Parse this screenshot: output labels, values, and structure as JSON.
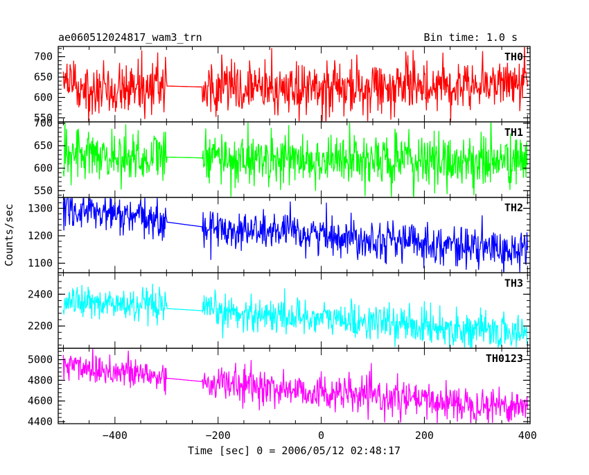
{
  "header": {
    "obs_id": "ae060512024817_wam3_trn",
    "bin_time": "Bin time: 1.0 s"
  },
  "chart_data": {
    "type": "line",
    "xlabel": "Time [sec] 0 = 2006/05/12 02:48:17",
    "ylabel": "Counts/sec",
    "xlim": [
      -510,
      405
    ],
    "x_ticks": [
      -400,
      -200,
      0,
      200,
      400
    ],
    "x_tick_labels": [
      "−400",
      "−200",
      "0",
      "200",
      "400"
    ],
    "x_range_data": [
      -500,
      400
    ],
    "gap": [
      -300,
      -230
    ],
    "grid": false,
    "panels": [
      {
        "name": "TH0",
        "color": "#ff0000",
        "ylim": [
          540,
          725
        ],
        "yticks": [
          550,
          600,
          650,
          700
        ],
        "trend": [
          [
            -500,
            625
          ],
          [
            -300,
            628
          ],
          [
            0,
            618
          ],
          [
            200,
            630
          ],
          [
            400,
            640
          ]
        ],
        "noise": 32
      },
      {
        "name": "TH1",
        "color": "#00ff00",
        "ylim": [
          535,
          703
        ],
        "yticks": [
          550,
          600,
          650,
          700
        ],
        "trend": [
          [
            -500,
            630
          ],
          [
            -200,
            622
          ],
          [
            0,
            618
          ],
          [
            200,
            615
          ],
          [
            400,
            615
          ]
        ],
        "noise": 30
      },
      {
        "name": "TH2",
        "color": "#0000ff",
        "ylim": [
          1065,
          1340
        ],
        "yticks": [
          1100,
          1200,
          1300
        ],
        "trend": [
          [
            -500,
            1300
          ],
          [
            -300,
            1250
          ],
          [
            -200,
            1225
          ],
          [
            0,
            1205
          ],
          [
            200,
            1175
          ],
          [
            400,
            1140
          ]
        ],
        "noise": 35
      },
      {
        "name": "TH3",
        "color": "#00ffff",
        "ylim": [
          2060,
          2535
        ],
        "yticks": [
          2200,
          2400
        ],
        "trend": [
          [
            -500,
            2360
          ],
          [
            -300,
            2310
          ],
          [
            0,
            2250
          ],
          [
            200,
            2200
          ],
          [
            400,
            2150
          ]
        ],
        "noise": 55
      },
      {
        "name": "TH0123",
        "color": "#ff00ff",
        "ylim": [
          4380,
          5110
        ],
        "yticks": [
          4400,
          4600,
          4800,
          5000
        ],
        "trend": [
          [
            -500,
            4960
          ],
          [
            -300,
            4820
          ],
          [
            0,
            4680
          ],
          [
            200,
            4600
          ],
          [
            400,
            4550
          ]
        ],
        "noise": 85
      }
    ]
  }
}
